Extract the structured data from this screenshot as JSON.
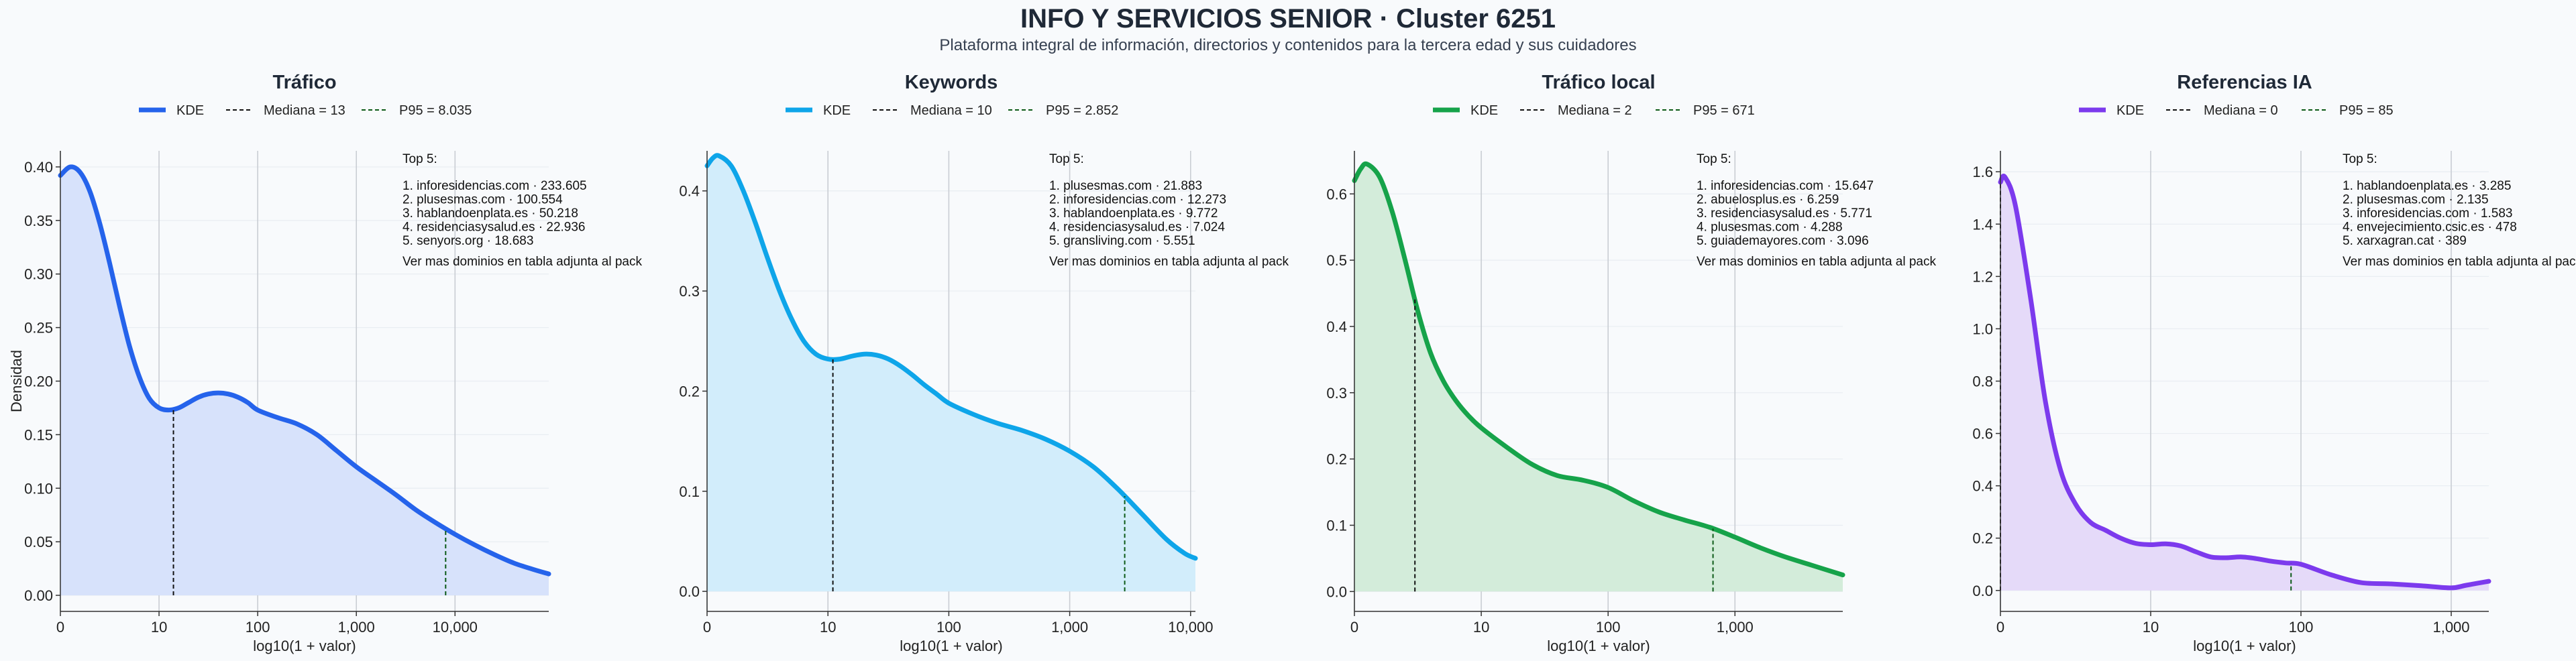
{
  "header": {
    "title": "INFO Y SERVICIOS SENIOR · Cluster 6251",
    "subtitle": "Plataforma integral de información, directorios y contenidos para la tercera edad y sus cuidadores"
  },
  "chart_data": [
    {
      "type": "area",
      "title": "Tráfico",
      "xlabel": "log10(1 + valor)",
      "ylabel": "Densidad",
      "color": "#2563eb",
      "fill": "#d7e2fb",
      "legend": [
        "KDE",
        "Mediana = 13",
        "P95 = 8.035"
      ],
      "legend_placement": "top-center",
      "grid": "x",
      "xlim": [
        0,
        4.95
      ],
      "ylim": [
        -0.015,
        0.415
      ],
      "xticks": [
        0,
        1,
        2,
        3,
        4
      ],
      "xticklabels": [
        "0",
        "10",
        "100",
        "1,000",
        "10,000"
      ],
      "yticks": [
        0,
        0.05,
        0.1,
        0.15,
        0.2,
        0.25,
        0.3,
        0.35,
        0.4
      ],
      "yticklabels": [
        "0.00",
        "0.05",
        "0.10",
        "0.15",
        "0.20",
        "0.25",
        "0.30",
        "0.35",
        "0.40"
      ],
      "median": 1.146,
      "p95": 3.905,
      "x": [
        0,
        0.1,
        0.2,
        0.3,
        0.4,
        0.5,
        0.6,
        0.7,
        0.8,
        0.9,
        1.0,
        1.1,
        1.2,
        1.3,
        1.4,
        1.5,
        1.6,
        1.7,
        1.8,
        1.9,
        2.0,
        2.2,
        2.4,
        2.6,
        2.8,
        3.0,
        3.2,
        3.4,
        3.6,
        3.8,
        4.0,
        4.2,
        4.4,
        4.6,
        4.8,
        4.95
      ],
      "y": [
        0.392,
        0.4,
        0.395,
        0.377,
        0.347,
        0.31,
        0.27,
        0.233,
        0.204,
        0.184,
        0.175,
        0.173,
        0.175,
        0.18,
        0.185,
        0.188,
        0.189,
        0.188,
        0.185,
        0.18,
        0.173,
        0.166,
        0.16,
        0.15,
        0.135,
        0.12,
        0.107,
        0.094,
        0.08,
        0.068,
        0.057,
        0.047,
        0.038,
        0.03,
        0.024,
        0.02
      ],
      "top5": {
        "heading": "Top 5:",
        "items": [
          "1. inforesidencias.com · 233.605",
          "2. plusesmas.com · 100.554",
          "3. hablandoenplata.es · 50.218",
          "4. residenciasysalud.es · 22.936",
          "5. senyors.org · 18.683"
        ],
        "footer": "Ver mas dominios en tabla adjunta al pack"
      }
    },
    {
      "type": "area",
      "title": "Keywords",
      "xlabel": "log10(1 + valor)",
      "ylabel": "",
      "color": "#0ea5e9",
      "fill": "#d2edfb",
      "legend": [
        "KDE",
        "Mediana = 10",
        "P95 = 2.852"
      ],
      "legend_placement": "top-center",
      "grid": "x",
      "xlim": [
        0,
        4.04
      ],
      "ylim": [
        -0.02,
        0.44
      ],
      "xticks": [
        0,
        1,
        2,
        3,
        4
      ],
      "xticklabels": [
        "0",
        "10",
        "100",
        "1,000",
        "10,000"
      ],
      "yticks": [
        0,
        0.1,
        0.2,
        0.3,
        0.4
      ],
      "yticklabels": [
        "0.0",
        "0.1",
        "0.2",
        "0.3",
        "0.4"
      ],
      "median": 1.041,
      "p95": 3.455,
      "x": [
        0,
        0.05,
        0.1,
        0.2,
        0.3,
        0.4,
        0.5,
        0.6,
        0.7,
        0.8,
        0.9,
        1.0,
        1.1,
        1.2,
        1.3,
        1.4,
        1.5,
        1.6,
        1.7,
        1.8,
        1.9,
        2.0,
        2.2,
        2.4,
        2.6,
        2.8,
        3.0,
        3.2,
        3.4,
        3.6,
        3.8,
        3.95,
        4.04
      ],
      "y": [
        0.425,
        0.433,
        0.435,
        0.425,
        0.4,
        0.368,
        0.333,
        0.3,
        0.272,
        0.25,
        0.237,
        0.232,
        0.232,
        0.235,
        0.237,
        0.236,
        0.232,
        0.225,
        0.216,
        0.206,
        0.197,
        0.188,
        0.177,
        0.168,
        0.161,
        0.152,
        0.14,
        0.124,
        0.102,
        0.077,
        0.052,
        0.038,
        0.033
      ],
      "top5": {
        "heading": "Top 5:",
        "items": [
          "1. plusesmas.com · 21.883",
          "2. inforesidencias.com · 12.273",
          "3. hablandoenplata.es · 9.772",
          "4. residenciasysalud.es · 7.024",
          "5. gransliving.com · 5.551"
        ],
        "footer": "Ver mas dominios en tabla adjunta al pack"
      }
    },
    {
      "type": "area",
      "title": "Tráfico local",
      "xlabel": "log10(1 + valor)",
      "ylabel": "",
      "color": "#16a34a",
      "fill": "#d3ecda",
      "legend": [
        "KDE",
        "Mediana = 2",
        "P95 = 671"
      ],
      "legend_placement": "top-center",
      "grid": "x",
      "xlim": [
        0,
        3.85
      ],
      "ylim": [
        -0.03,
        0.665
      ],
      "xticks": [
        0,
        1,
        2,
        3
      ],
      "xticklabels": [
        "0",
        "10",
        "100",
        "1,000"
      ],
      "yticks": [
        0,
        0.1,
        0.2,
        0.3,
        0.4,
        0.5,
        0.6
      ],
      "yticklabels": [
        "0.0",
        "0.1",
        "0.2",
        "0.3",
        "0.4",
        "0.5",
        "0.6"
      ],
      "median": 0.477,
      "p95": 2.827,
      "x": [
        0,
        0.05,
        0.1,
        0.2,
        0.3,
        0.4,
        0.5,
        0.6,
        0.7,
        0.8,
        0.9,
        1.0,
        1.2,
        1.4,
        1.6,
        1.8,
        2.0,
        2.2,
        2.4,
        2.6,
        2.8,
        3.0,
        3.2,
        3.4,
        3.6,
        3.85
      ],
      "y": [
        0.62,
        0.638,
        0.645,
        0.625,
        0.572,
        0.5,
        0.423,
        0.36,
        0.318,
        0.288,
        0.265,
        0.247,
        0.218,
        0.192,
        0.175,
        0.168,
        0.157,
        0.137,
        0.12,
        0.108,
        0.097,
        0.082,
        0.066,
        0.052,
        0.04,
        0.025
      ],
      "top5": {
        "heading": "Top 5:",
        "items": [
          "1. inforesidencias.com · 15.647",
          "2. abuelosplus.es · 6.259",
          "3. residenciasysalud.es · 5.771",
          "4. plusesmas.com · 4.288",
          "5. guiademayores.com · 3.096"
        ],
        "footer": "Ver mas dominios en tabla adjunta al pack"
      }
    },
    {
      "type": "area",
      "title": "Referencias IA",
      "xlabel": "log10(1 + valor)",
      "ylabel": "",
      "color": "#7c3aed",
      "fill": "#e5daf9",
      "legend": [
        "KDE",
        "Mediana = 0",
        "P95 = 85"
      ],
      "legend_placement": "top-center",
      "grid": "x",
      "xlim": [
        0,
        3.25
      ],
      "ylim": [
        -0.08,
        1.68
      ],
      "xticks": [
        0,
        1,
        2,
        3
      ],
      "xticklabels": [
        "0",
        "10",
        "100",
        "1,000"
      ],
      "yticks": [
        0,
        0.2,
        0.4,
        0.6,
        0.8,
        1.0,
        1.2,
        1.4,
        1.6
      ],
      "yticklabels": [
        "0.0",
        "0.2",
        "0.4",
        "0.6",
        "0.8",
        "1.0",
        "1.2",
        "1.4",
        "1.6"
      ],
      "median": 0,
      "p95": 1.934,
      "x": [
        0,
        0.03,
        0.1,
        0.2,
        0.3,
        0.4,
        0.5,
        0.6,
        0.7,
        0.8,
        0.9,
        1.0,
        1.1,
        1.2,
        1.3,
        1.4,
        1.5,
        1.6,
        1.7,
        1.8,
        1.9,
        2.0,
        2.2,
        2.4,
        2.6,
        2.8,
        3.0,
        3.1,
        3.25
      ],
      "y": [
        1.56,
        1.58,
        1.47,
        1.12,
        0.72,
        0.46,
        0.33,
        0.26,
        0.23,
        0.2,
        0.18,
        0.175,
        0.178,
        0.17,
        0.148,
        0.128,
        0.125,
        0.128,
        0.122,
        0.112,
        0.105,
        0.1,
        0.06,
        0.03,
        0.025,
        0.018,
        0.01,
        0.02,
        0.035
      ],
      "top5": {
        "heading": "Top 5:",
        "items": [
          "1. hablandoenplata.es · 3.285",
          "2. plusesmas.com · 2.135",
          "3. inforesidencias.com · 1.583",
          "4. envejecimiento.csic.es · 478",
          "5. xarxagran.cat · 389"
        ],
        "footer": "Ver mas dominios en tabla adjunta al pack"
      }
    }
  ]
}
